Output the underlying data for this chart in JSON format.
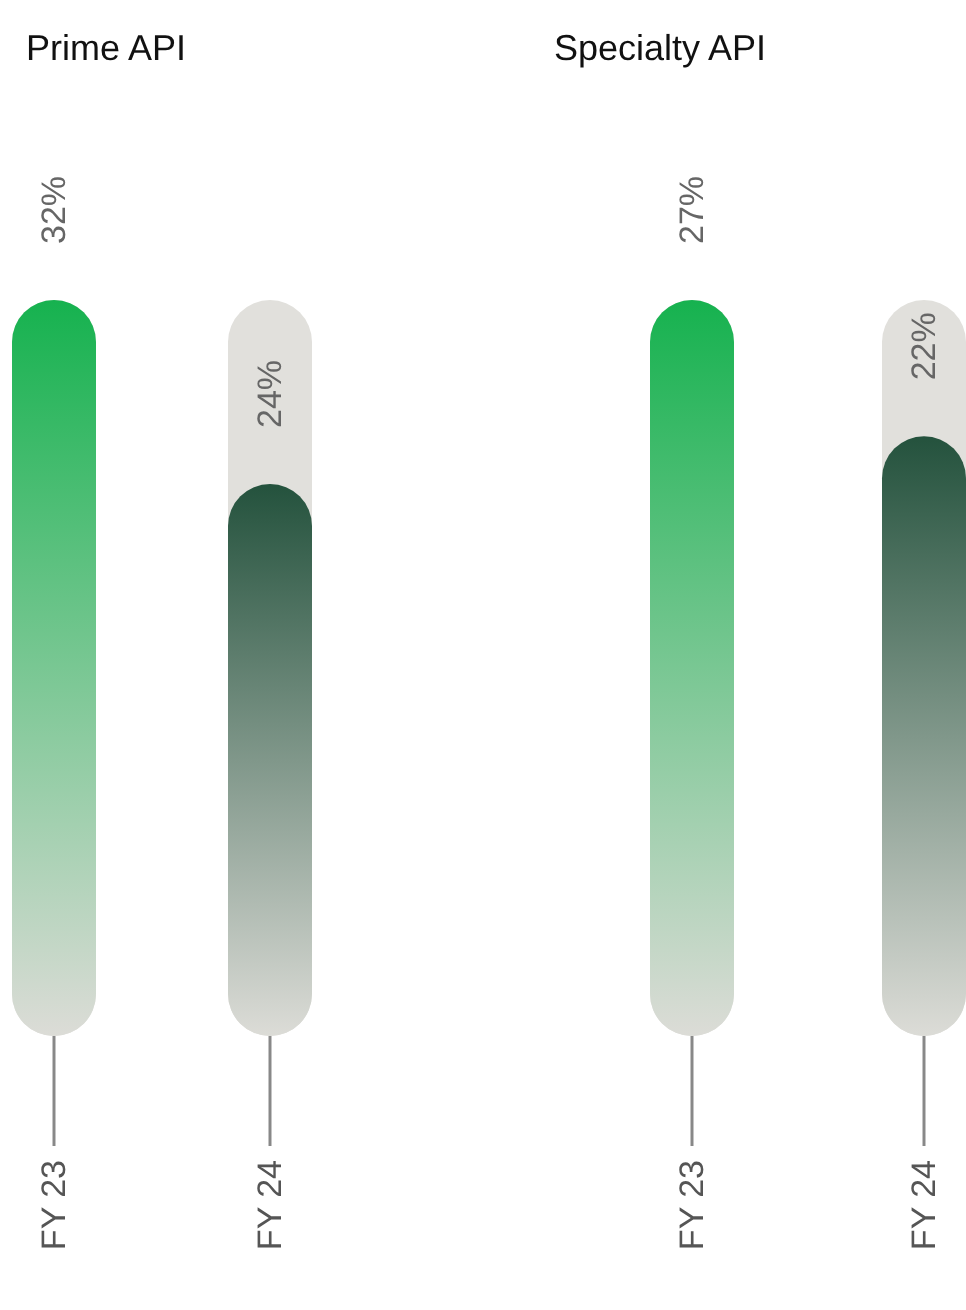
{
  "chart_data": [
    {
      "type": "bar",
      "title": "Prime API",
      "categories": [
        "FY 23",
        "FY 24"
      ],
      "values": [
        32,
        24
      ],
      "colors": [
        "#16b24f",
        "#24523d"
      ],
      "value_labels": [
        "32%",
        "24%"
      ],
      "tick_labels": "x"
    },
    {
      "type": "bar",
      "title": "Specialty API",
      "categories": [
        "FY 23",
        "FY 24"
      ],
      "values": [
        27,
        22
      ],
      "colors": [
        "#16b24f",
        "#24523d"
      ],
      "value_labels": [
        "27%",
        "22%"
      ],
      "tick_labels": "x"
    }
  ]
}
